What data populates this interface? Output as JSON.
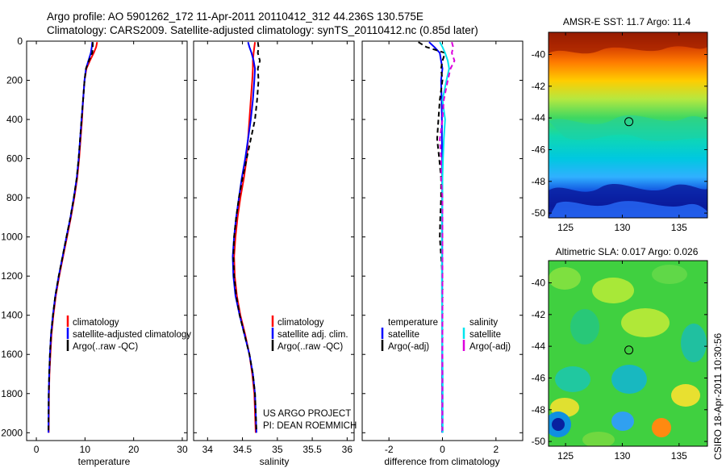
{
  "header": {
    "line1": "Argo profile: AO 5901262_172 11-Apr-2011 20110412_312 44.236S 130.575E",
    "line2": "Climatology: CARS2009. Satellite-adjusted climatology: synTS_20110412.nc (0.85d later)"
  },
  "side_label": "CSIRO 18-Apr-2011 10:30:56",
  "colors": {
    "climatology": "#ff0000",
    "satellite": "#0000ff",
    "argo": "#000000",
    "salinity_satellite": "#00e5ee",
    "salinity_argo": "#dd00dd"
  },
  "chart_data": [
    {
      "type": "line",
      "xlabel": "temperature",
      "ylabel": "",
      "xlim": [
        -2,
        31
      ],
      "ylim": [
        2040,
        0
      ],
      "y_reversed": true,
      "xticks": [
        "0",
        "10",
        "20",
        "30"
      ],
      "yticks": [
        "0",
        "200",
        "400",
        "600",
        "800",
        "1000",
        "1200",
        "1400",
        "1600",
        "1800",
        "2000"
      ],
      "legend": [
        "climatology",
        "satellite-adjusted climatology",
        "Argo(..raw -QC)"
      ],
      "series": [
        {
          "name": "climatology",
          "color": "#ff0000",
          "x": [
            12.5,
            12.3,
            11.8,
            11.0,
            10.3,
            9.9,
            9.6,
            9.4,
            9.1,
            8.8,
            8.4,
            7.8,
            7.1,
            6.3,
            5.5,
            4.7,
            4.0,
            3.5,
            3.1,
            2.9,
            2.7,
            2.6,
            2.55
          ],
          "y": [
            5,
            30,
            60,
            100,
            140,
            200,
            300,
            400,
            500,
            600,
            700,
            800,
            900,
            1000,
            1100,
            1200,
            1300,
            1400,
            1500,
            1600,
            1700,
            1800,
            2000
          ]
        },
        {
          "name": "satellite-adjusted climatology",
          "color": "#0000ff",
          "x": [
            11.5,
            11.4,
            11.2,
            10.7,
            10.2,
            9.9,
            9.6,
            9.3,
            9.0,
            8.7,
            8.3,
            7.7,
            7.0,
            6.2,
            5.4,
            4.6,
            3.9,
            3.4,
            3.0,
            2.8,
            2.65,
            2.55,
            2.5
          ],
          "y": [
            5,
            30,
            60,
            100,
            140,
            200,
            300,
            400,
            500,
            600,
            700,
            800,
            900,
            1000,
            1100,
            1200,
            1300,
            1400,
            1500,
            1600,
            1700,
            1800,
            2000
          ]
        },
        {
          "name": "Argo(..raw -QC)",
          "color": "#000000",
          "x": [
            11.6,
            11.6,
            11.5,
            10.8,
            10.2,
            9.9,
            9.6,
            9.3,
            9.0,
            8.7,
            8.3,
            7.7,
            7.0,
            6.2,
            5.4,
            4.6,
            3.9,
            3.4,
            3.0,
            2.8,
            2.65,
            2.55,
            2.5
          ],
          "y": [
            5,
            30,
            60,
            100,
            140,
            200,
            300,
            400,
            500,
            600,
            700,
            800,
            900,
            1000,
            1100,
            1200,
            1300,
            1400,
            1500,
            1600,
            1700,
            1800,
            1990
          ]
        }
      ]
    },
    {
      "type": "line",
      "xlabel": "salinity",
      "xlim": [
        33.8,
        36.1
      ],
      "ylim": [
        2040,
        0
      ],
      "y_reversed": true,
      "xticks": [
        "34",
        "34.5",
        "35",
        "35.5",
        "36"
      ],
      "legend": [
        "climatology",
        "satellite adj. clim.",
        "Argo(..raw -QC)"
      ],
      "annotation": [
        "US ARGO PROJECT",
        "PI: DEAN ROEMMICH"
      ],
      "series": [
        {
          "name": "climatology",
          "color": "#ff0000",
          "x": [
            34.68,
            34.67,
            34.66,
            34.65,
            34.65,
            34.64,
            34.62,
            34.6,
            34.58,
            34.56,
            34.52,
            34.47,
            34.43,
            34.4,
            34.38,
            34.39,
            34.42,
            34.47,
            34.54,
            34.6,
            34.64,
            34.67,
            34.69
          ],
          "y": [
            5,
            30,
            60,
            100,
            140,
            200,
            300,
            400,
            500,
            600,
            700,
            800,
            900,
            1000,
            1100,
            1200,
            1300,
            1400,
            1500,
            1600,
            1700,
            1800,
            2000
          ]
        },
        {
          "name": "satellite adj. clim.",
          "color": "#0000ff",
          "x": [
            34.58,
            34.6,
            34.63,
            34.66,
            34.68,
            34.67,
            34.65,
            34.62,
            34.58,
            34.54,
            34.49,
            34.45,
            34.41,
            34.38,
            34.36,
            34.37,
            34.4,
            34.46,
            34.53,
            34.6,
            34.65,
            34.68,
            34.7
          ],
          "y": [
            5,
            30,
            60,
            100,
            140,
            200,
            300,
            400,
            500,
            600,
            700,
            800,
            900,
            1000,
            1100,
            1200,
            1300,
            1400,
            1500,
            1600,
            1700,
            1800,
            2000
          ]
        },
        {
          "name": "Argo(..raw -QC)",
          "color": "#000000",
          "x": [
            34.72,
            34.73,
            34.72,
            34.75,
            34.72,
            34.73,
            34.71,
            34.68,
            34.62,
            34.56,
            34.5,
            34.45,
            34.41,
            34.38,
            34.37,
            34.38,
            34.41,
            34.46,
            34.53,
            34.6,
            34.65,
            34.68,
            34.7
          ],
          "y": [
            5,
            30,
            60,
            100,
            140,
            200,
            300,
            400,
            500,
            600,
            700,
            800,
            900,
            1000,
            1100,
            1200,
            1300,
            1400,
            1500,
            1600,
            1700,
            1800,
            1990
          ]
        }
      ]
    },
    {
      "type": "line",
      "xlabel": "difference from climatology",
      "xlim": [
        -3,
        3
      ],
      "ylim": [
        2040,
        0
      ],
      "y_reversed": true,
      "xticks": [
        "-2",
        "0",
        "2"
      ],
      "legend_headers": [
        "temperature",
        "salinity"
      ],
      "legend": [
        "satellite",
        "Argo(-adj)",
        "satellite",
        "Argo(-adj)"
      ],
      "series": [
        {
          "name": "temperature satellite",
          "color": "#0000ff",
          "x": [
            -0.5,
            -0.3,
            -0.1,
            -0.05,
            0.0,
            -0.05,
            -0.03,
            -0.02,
            -0.02,
            -0.01,
            -0.01,
            -0.01,
            -0.01,
            -0.01,
            -0.01,
            -0.01,
            -0.01,
            -0.01,
            -0.01,
            -0.01,
            -0.01,
            -0.01,
            -0.01
          ],
          "y": [
            5,
            30,
            60,
            100,
            140,
            200,
            300,
            400,
            500,
            600,
            700,
            800,
            900,
            1000,
            1100,
            1200,
            1300,
            1400,
            1500,
            1600,
            1700,
            1800,
            2000
          ]
        },
        {
          "name": "temperature Argo(-adj)",
          "color": "#000000",
          "x": [
            -0.9,
            -0.6,
            0.1,
            0.0,
            -0.05,
            0.0,
            -0.1,
            -0.15,
            -0.2,
            -0.12,
            -0.05,
            -0.05,
            -0.08,
            -0.1,
            -0.05,
            0.0,
            0.0,
            0.0,
            0.0,
            0.0,
            0.0,
            0.0,
            0.0
          ],
          "y": [
            5,
            30,
            60,
            100,
            140,
            200,
            300,
            400,
            500,
            600,
            700,
            800,
            900,
            1000,
            1100,
            1200,
            1300,
            1400,
            1500,
            1600,
            1700,
            1800,
            1990
          ]
        },
        {
          "name": "salinity satellite",
          "color": "#00e5ee",
          "x": [
            -0.1,
            0.0,
            0.1,
            0.2,
            0.25,
            0.15,
            0.0,
            0.1,
            0.05,
            0.02,
            0.0,
            0.0,
            -0.02,
            -0.02,
            -0.02,
            -0.02,
            -0.02,
            -0.01,
            -0.01,
            0.0,
            0.01,
            0.01,
            0.01
          ],
          "y": [
            5,
            30,
            60,
            100,
            140,
            200,
            300,
            400,
            500,
            600,
            700,
            800,
            900,
            1000,
            1100,
            1200,
            1300,
            1400,
            1500,
            1600,
            1700,
            1800,
            2000
          ]
        },
        {
          "name": "salinity Argo(-adj)",
          "color": "#dd00dd",
          "x": [
            0.35,
            0.4,
            0.35,
            0.45,
            0.3,
            0.2,
            0.05,
            0.0,
            -0.1,
            -0.05,
            -0.05,
            0.0,
            0.0,
            0.0,
            0.0,
            0.0,
            0.0,
            0.0,
            0.0,
            0.0,
            0.0,
            0.0,
            0.0
          ],
          "y": [
            5,
            30,
            60,
            100,
            140,
            200,
            300,
            400,
            500,
            600,
            700,
            800,
            900,
            1000,
            1100,
            1200,
            1300,
            1400,
            1500,
            1600,
            1700,
            1800,
            1990
          ]
        }
      ]
    },
    {
      "type": "heatmap",
      "title": "AMSR-E SST: 11.7 Argo: 11.4",
      "xlim": [
        123.5,
        137.5
      ],
      "ylim": [
        -50.3,
        -38.6
      ],
      "xticks": [
        "125",
        "130",
        "135"
      ],
      "yticks": [
        "-40",
        "-42",
        "-44",
        "-46",
        "-48",
        "-50"
      ],
      "colormap": "jet",
      "marker": {
        "lon": 130.575,
        "lat": -44.236
      }
    },
    {
      "type": "heatmap",
      "title": "Altimetric SLA: 0.017 Argo: 0.026",
      "xlim": [
        123.5,
        137.5
      ],
      "ylim": [
        -50.3,
        -38.6
      ],
      "xticks": [
        "125",
        "130",
        "135"
      ],
      "yticks": [
        "-40",
        "-42",
        "-44",
        "-46",
        "-48",
        "-50"
      ],
      "colormap": "jet",
      "marker": {
        "lon": 130.575,
        "lat": -44.236
      }
    }
  ]
}
